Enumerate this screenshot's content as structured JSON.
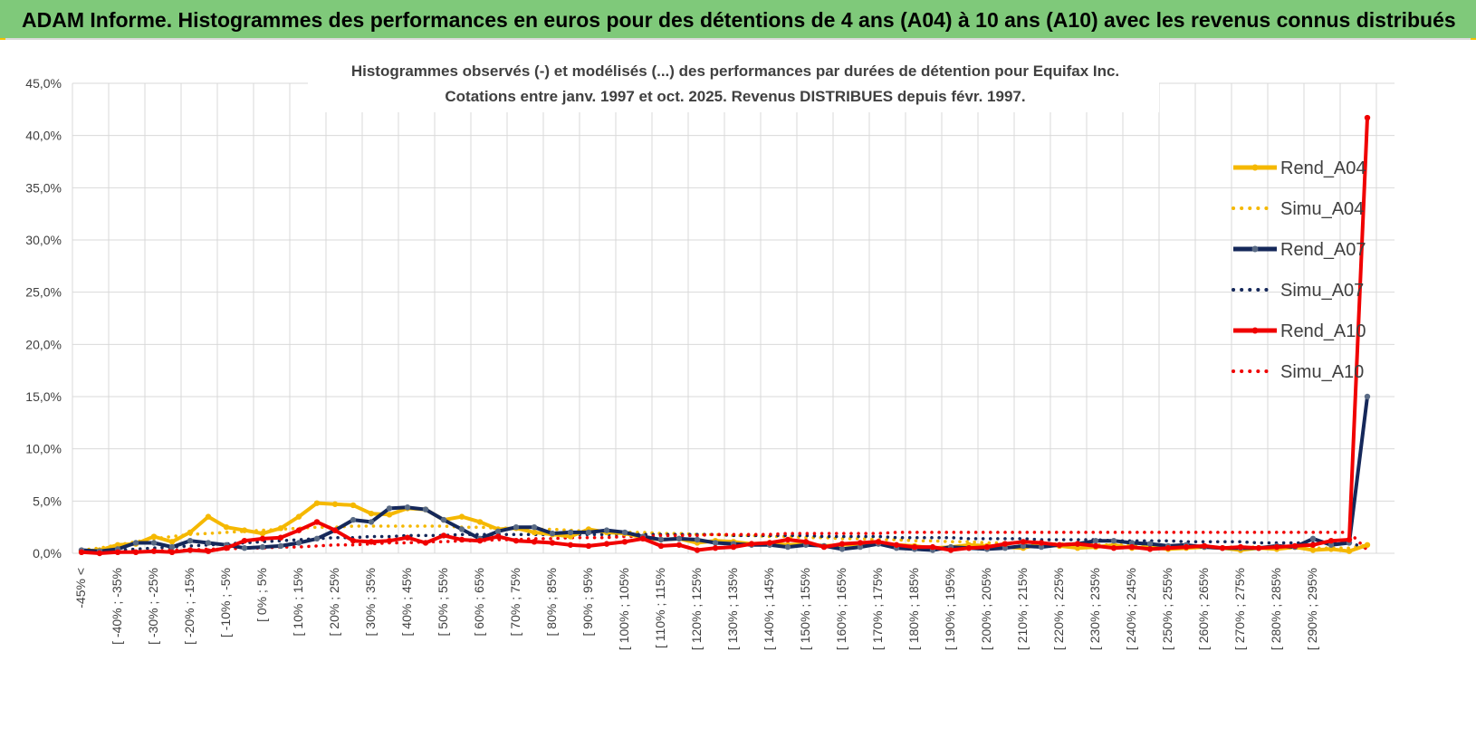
{
  "header": {
    "title": "ADAM Informe. Histogrammes des performances en euros pour des détentions de 4 ans (A04) à 10 ans (A10) avec les revenus connus distribués"
  },
  "colors": {
    "header_bg": "#7fc97a",
    "A04": "#f5b800",
    "A07": "#15285a",
    "A07_marker": "#5a6b85",
    "A10": "#f00000",
    "grid": "#d9d9d9"
  },
  "chart_data": {
    "type": "line",
    "title": "Histogrammes observés (-) et modélisés (...) des performances par durées de détention pour Equifax Inc.",
    "subtitle": "Cotations entre janv. 1997 et oct. 2025.  Revenus DISTRIBUES depuis févr. 1997.",
    "xlabel": "",
    "ylabel": "",
    "ylim": [
      0,
      45
    ],
    "y_ticks": [
      "0,0%",
      "5,0%",
      "10,0%",
      "15,0%",
      "20,0%",
      "25,0%",
      "30,0%",
      "35,0%",
      "40,0%",
      "45,0%"
    ],
    "grid": true,
    "legend_position": "top-right",
    "category_labels": [
      "-45% <",
      "[ -40% ; -35%",
      "[ -30% ; -25%",
      "[ -20% ; -15%",
      "[ -10% ; -5%",
      "[ 0% ; 5%",
      "[ 10% ; 15%",
      "[ 20% ; 25%",
      "[ 30% ; 35%",
      "[ 40% ; 45%",
      "[ 50% ; 55%",
      "[ 60% ; 65%",
      "[ 70% ; 75%",
      "[ 80% ; 85%",
      "[ 90% ; 95%",
      "[ 100% ; 105%",
      "[ 110% ; 115%",
      "[ 120% ; 125%",
      "[ 130% ; 135%",
      "[ 140% ; 145%",
      "[ 150% ; 155%",
      "[ 160% ; 165%",
      "[ 170% ; 175%",
      "[ 180% ; 185%",
      "[ 190% ; 195%",
      "[ 200% ; 205%",
      "[ 210% ; 215%",
      "[ 220% ; 225%",
      "[ 230% ; 235%",
      "[ 240% ; 245%",
      "[ 250% ; 255%",
      "[ 260% ; 265%",
      "[ 270% ; 275%",
      "[ 280% ; 285%",
      "[ 290% ; 295%"
    ],
    "series": [
      {
        "name": "Rend_A04",
        "style": "solid",
        "values": [
          0.2,
          0.3,
          0.8,
          0.9,
          1.6,
          1.1,
          2.0,
          3.5,
          2.5,
          2.2,
          1.9,
          2.4,
          3.5,
          4.8,
          4.7,
          4.6,
          3.8,
          3.7,
          4.3,
          4.2,
          3.2,
          3.5,
          3.0,
          2.3,
          2.4,
          2.0,
          1.8,
          1.6,
          2.3,
          2.0,
          1.9,
          1.5,
          1.3,
          1.4,
          1.0,
          1.2,
          1.1,
          0.9,
          1.0,
          0.8,
          0.9,
          0.7,
          0.8,
          0.9,
          1.0,
          0.8,
          0.7,
          0.5,
          0.6,
          0.8,
          0.7,
          0.6,
          0.5,
          0.9,
          0.7,
          0.5,
          0.6,
          0.8,
          0.5,
          0.6,
          0.4,
          0.5,
          0.6,
          0.5,
          0.3,
          0.5,
          0.4,
          0.6,
          0.3,
          0.4,
          0.2,
          0.8
        ]
      },
      {
        "name": "Simu_A04",
        "style": "dotted",
        "values": [
          0.3,
          0.5,
          0.8,
          1.1,
          1.4,
          1.6,
          1.8,
          1.9,
          2.0,
          2.1,
          2.2,
          2.3,
          2.4,
          2.5,
          2.5,
          2.6,
          2.6,
          2.6,
          2.6,
          2.6,
          2.6,
          2.5,
          2.5,
          2.4,
          2.4,
          2.3,
          2.3,
          2.2,
          2.1,
          2.1,
          2.0,
          2.0,
          1.9,
          1.9,
          1.8,
          1.8,
          1.7,
          1.7,
          1.6,
          1.6,
          1.5,
          1.5,
          1.4,
          1.4,
          1.3,
          1.3,
          1.2,
          1.2,
          1.1,
          1.1,
          1.0,
          1.0,
          1.0,
          0.9,
          0.9,
          0.9,
          0.8,
          0.8,
          0.8,
          0.7,
          0.7,
          0.7,
          0.6,
          0.6,
          0.6,
          0.6,
          0.5,
          0.5,
          0.5,
          0.5,
          0.5,
          0.8
        ]
      },
      {
        "name": "Rend_A07",
        "style": "solid",
        "values": [
          0.3,
          0.2,
          0.4,
          1.0,
          1.0,
          0.6,
          1.2,
          1.0,
          0.8,
          0.5,
          0.6,
          0.7,
          1.0,
          1.4,
          2.2,
          3.2,
          3.0,
          4.3,
          4.4,
          4.2,
          3.2,
          2.3,
          1.4,
          2.1,
          2.5,
          2.5,
          1.9,
          2.0,
          2.0,
          2.2,
          2.0,
          1.6,
          1.3,
          1.4,
          1.3,
          1.0,
          0.9,
          0.8,
          0.8,
          0.6,
          0.8,
          0.7,
          0.4,
          0.6,
          0.9,
          0.5,
          0.4,
          0.3,
          0.6,
          0.5,
          0.4,
          0.5,
          0.7,
          0.6,
          0.8,
          0.9,
          1.2,
          1.2,
          1.0,
          0.9,
          0.7,
          0.8,
          0.6,
          0.5,
          0.5,
          0.5,
          0.7,
          0.6,
          1.4,
          0.8,
          1.0,
          15.0
        ]
      },
      {
        "name": "Simu_A07",
        "style": "dotted",
        "values": [
          0.1,
          0.2,
          0.3,
          0.4,
          0.5,
          0.6,
          0.7,
          0.8,
          0.9,
          1.0,
          1.1,
          1.2,
          1.3,
          1.4,
          1.5,
          1.5,
          1.6,
          1.6,
          1.7,
          1.7,
          1.7,
          1.8,
          1.8,
          1.8,
          1.8,
          1.8,
          1.8,
          1.8,
          1.8,
          1.8,
          1.8,
          1.8,
          1.8,
          1.8,
          1.8,
          1.8,
          1.7,
          1.7,
          1.7,
          1.7,
          1.7,
          1.6,
          1.6,
          1.6,
          1.6,
          1.5,
          1.5,
          1.5,
          1.5,
          1.4,
          1.4,
          1.4,
          1.4,
          1.3,
          1.3,
          1.3,
          1.3,
          1.2,
          1.2,
          1.2,
          1.2,
          1.1,
          1.1,
          1.1,
          1.1,
          1.0,
          1.0,
          1.0,
          1.0,
          1.0,
          1.0,
          0.5
        ]
      },
      {
        "name": "Rend_A10",
        "style": "solid",
        "values": [
          0.1,
          0.0,
          0.1,
          0.1,
          0.2,
          0.1,
          0.3,
          0.2,
          0.5,
          1.2,
          1.4,
          1.5,
          2.2,
          3.0,
          2.2,
          1.2,
          1.1,
          1.2,
          1.5,
          1.0,
          1.7,
          1.3,
          1.2,
          1.6,
          1.2,
          1.1,
          1.0,
          0.8,
          0.7,
          0.9,
          1.1,
          1.4,
          0.7,
          0.8,
          0.3,
          0.5,
          0.6,
          0.9,
          1.0,
          1.3,
          1.1,
          0.6,
          0.9,
          1.0,
          1.1,
          0.8,
          0.6,
          0.6,
          0.3,
          0.5,
          0.6,
          0.9,
          1.1,
          1.0,
          0.8,
          0.9,
          0.7,
          0.5,
          0.6,
          0.4,
          0.5,
          0.6,
          0.7,
          0.5,
          0.6,
          0.5,
          0.6,
          0.7,
          0.8,
          1.2,
          1.3,
          41.7
        ]
      },
      {
        "name": "Simu_A10",
        "style": "dotted",
        "values": [
          0.1,
          0.1,
          0.1,
          0.2,
          0.2,
          0.3,
          0.3,
          0.4,
          0.4,
          0.5,
          0.5,
          0.6,
          0.6,
          0.7,
          0.8,
          0.8,
          0.9,
          1.0,
          1.0,
          1.1,
          1.1,
          1.2,
          1.2,
          1.3,
          1.3,
          1.4,
          1.4,
          1.5,
          1.5,
          1.5,
          1.6,
          1.6,
          1.7,
          1.7,
          1.7,
          1.8,
          1.8,
          1.8,
          1.8,
          1.9,
          1.9,
          1.9,
          1.9,
          1.9,
          1.9,
          2.0,
          2.0,
          2.0,
          2.0,
          2.0,
          2.0,
          2.0,
          2.0,
          2.0,
          2.0,
          2.0,
          2.0,
          2.0,
          2.0,
          2.0,
          2.0,
          2.0,
          2.0,
          2.0,
          2.0,
          2.0,
          2.0,
          2.0,
          2.0,
          2.0,
          2.0,
          0.3
        ]
      }
    ]
  }
}
